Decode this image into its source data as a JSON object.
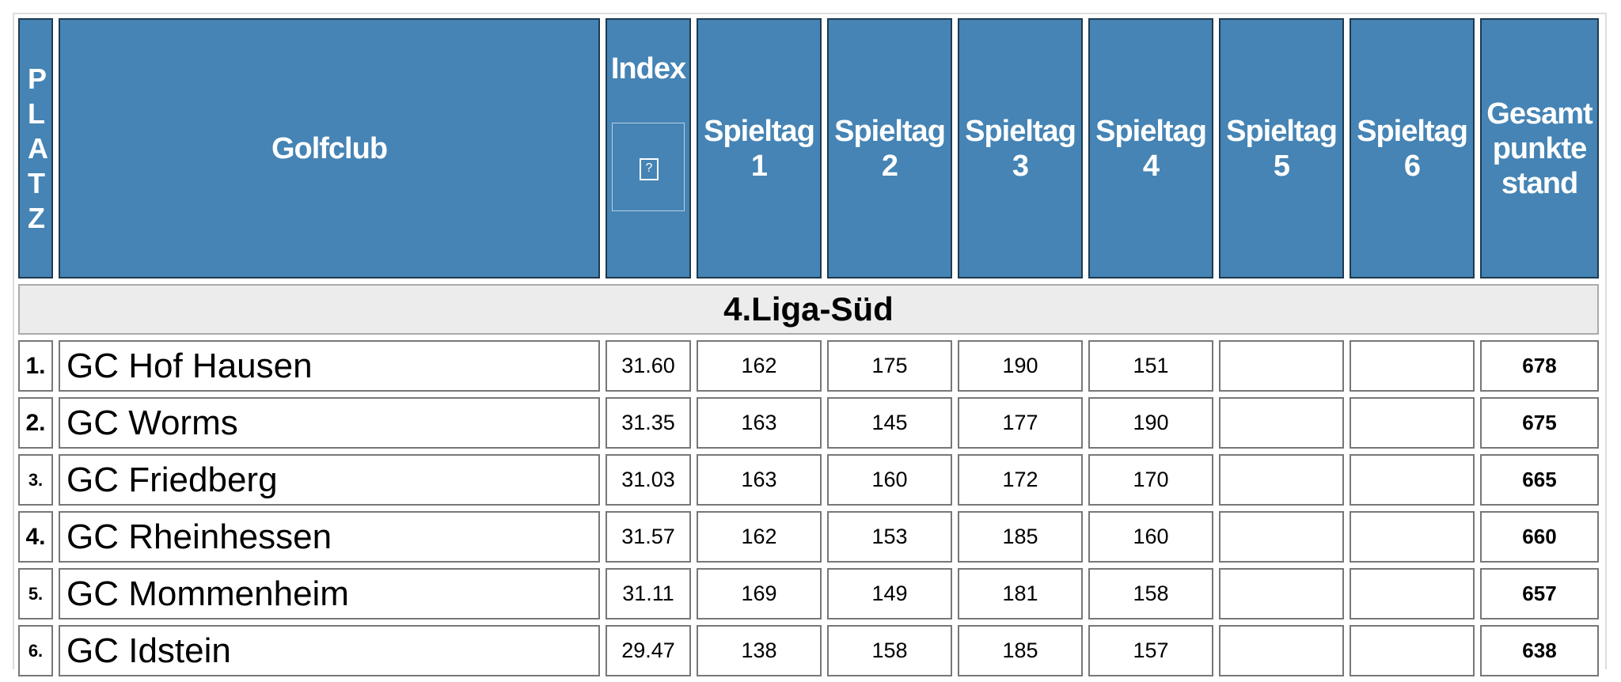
{
  "table": {
    "header": {
      "platz": "PLATZ",
      "club": "Golfclub",
      "index": "Index",
      "index_icon": "?",
      "rounds": [
        "Spieltag 1",
        "Spieltag 2",
        "Spieltag 3",
        "Spieltag 4",
        "Spieltag 5",
        "Spieltag 6"
      ],
      "total": "Gesamt punkte stand"
    },
    "section": "4.Liga-Süd",
    "rows": [
      {
        "rank": "1.",
        "club": "GC Hof Hausen",
        "index": "31.60",
        "scores": [
          162,
          175,
          190,
          151
        ],
        "total": 678
      },
      {
        "rank": "2.",
        "club": "GC Worms",
        "index": "31.35",
        "scores": [
          163,
          145,
          177,
          190
        ],
        "total": 675
      },
      {
        "rank": "3.",
        "club": "GC Friedberg",
        "index": "31.03",
        "scores": [
          163,
          160,
          172,
          170
        ],
        "total": 665
      },
      {
        "rank": "4.",
        "club": "GC Rheinhessen",
        "index": "31.57",
        "scores": [
          162,
          153,
          185,
          160
        ],
        "total": 660
      },
      {
        "rank": "5.",
        "club": "GC Mommenheim",
        "index": "31.11",
        "scores": [
          169,
          149,
          181,
          158
        ],
        "total": 657
      },
      {
        "rank": "6.",
        "club": "GC Idstein",
        "index": "29.47",
        "scores": [
          138,
          158,
          185,
          157
        ],
        "total": 638
      }
    ]
  }
}
